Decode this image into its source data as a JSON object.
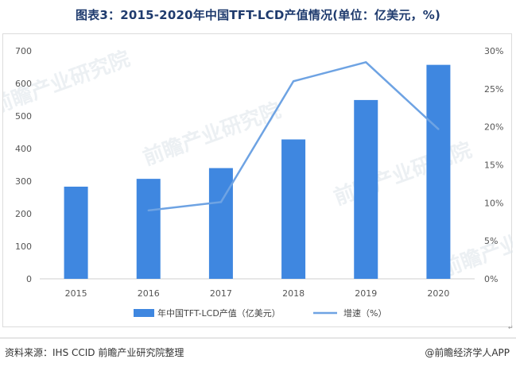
{
  "header": {
    "title": "图表3：2015-2020年中国TFT-LCD产值情况(单位：亿美元，%)"
  },
  "footer": {
    "source": "资料来源：IHS CCID 前瞻产业研究院整理",
    "brand": "@前瞻经济学人APP"
  },
  "watermark": {
    "text": "前瞻产业研究院"
  },
  "chart_data": {
    "type": "bar",
    "categories": [
      "2015",
      "2016",
      "2017",
      "2018",
      "2019",
      "2020"
    ],
    "series": [
      {
        "name": "年中国TFT-LCD产值（亿美元）",
        "type": "bar",
        "axis": "left",
        "values": [
          283,
          307,
          340,
          428,
          549,
          657
        ],
        "color": "#3f87e0"
      },
      {
        "name": "增速（%）",
        "type": "line",
        "axis": "right",
        "values": [
          null,
          9.0,
          10.1,
          26.0,
          28.5,
          19.7
        ],
        "color": "#6ea3e3"
      }
    ],
    "y_left": {
      "min": 0,
      "max": 700,
      "ticks": [
        0,
        100,
        200,
        300,
        400,
        500,
        600,
        700
      ]
    },
    "y_right": {
      "min": 0,
      "max": 30,
      "ticks": [
        "0%",
        "5%",
        "10%",
        "15%",
        "20%",
        "25%",
        "30%"
      ]
    },
    "grid": false,
    "legend_position": "bottom"
  }
}
